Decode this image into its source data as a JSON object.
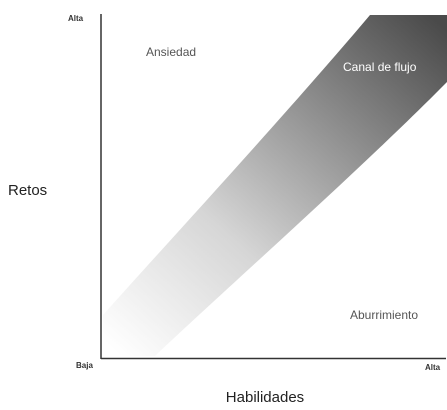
{
  "y_axis": {
    "label": "Retos",
    "high": "Alta",
    "low": "Baja"
  },
  "x_axis": {
    "label": "Habilidades",
    "high": "Alta"
  },
  "regions": {
    "top": "Ansiedad",
    "channel": "Canal de flujo",
    "bottom": "Aburrimiento"
  }
}
